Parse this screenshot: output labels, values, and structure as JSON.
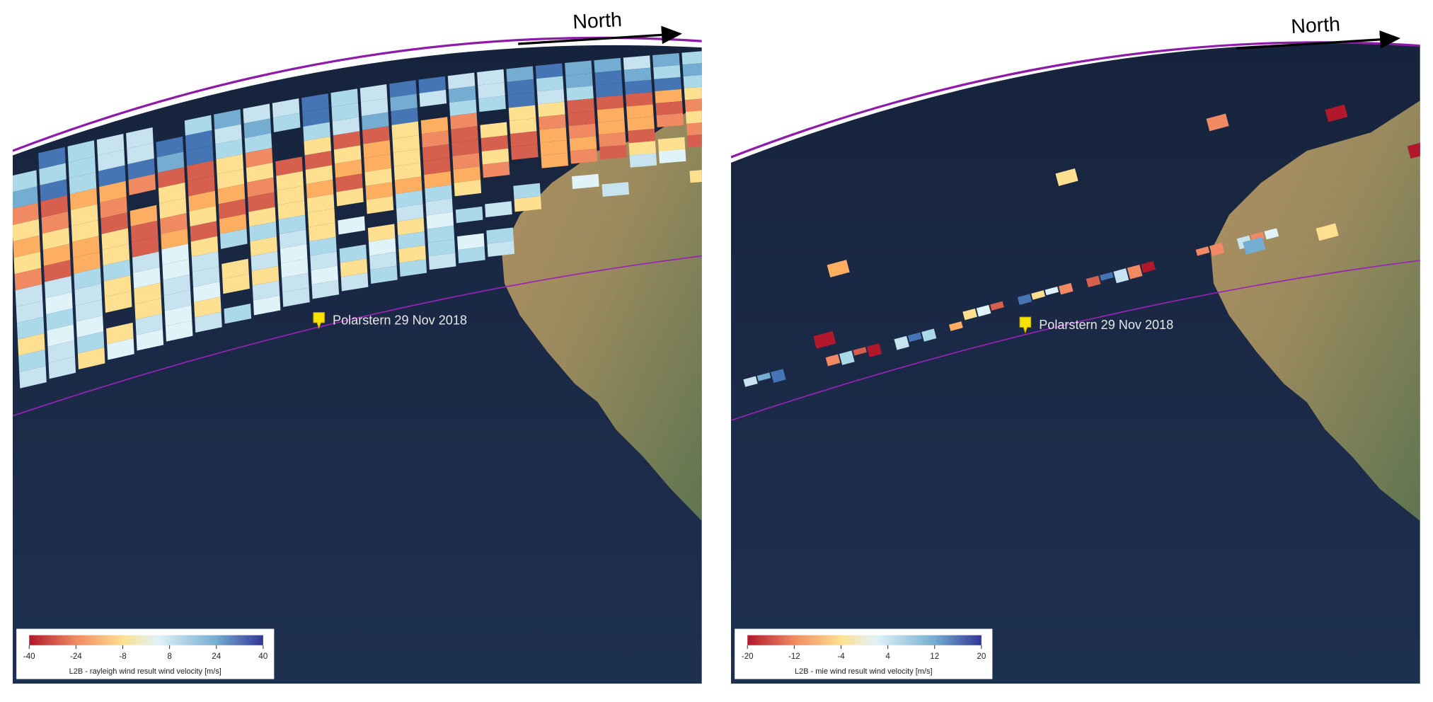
{
  "panels": [
    {
      "north_label": "North",
      "marker_label": "Polarstern 29 Nov 2018",
      "colorbar": {
        "title": "L2B - rayleigh wind result wind velocity [m/s]",
        "range": [
          -40,
          40
        ],
        "ticks": [
          -40,
          -24,
          -8,
          8,
          24,
          40
        ]
      }
    },
    {
      "north_label": "North",
      "marker_label": "Polarstern 29 Nov 2018",
      "colorbar": {
        "title": "L2B - mie wind result wind velocity [m/s]",
        "range": [
          -20,
          20
        ],
        "ticks": [
          -20,
          -12,
          -4,
          4,
          12,
          20
        ]
      }
    }
  ]
}
